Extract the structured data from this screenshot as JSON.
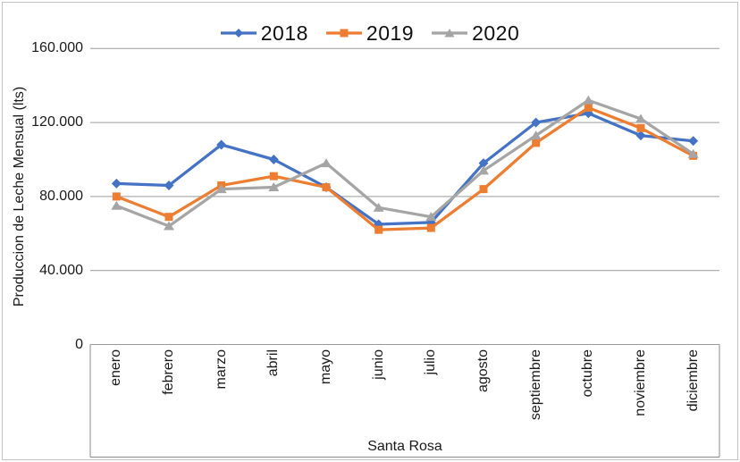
{
  "chart_data": {
    "type": "line",
    "title": "",
    "xlabel": "",
    "ylabel": "Produccion de Leche Mensual (lts)",
    "group_label": "Santa Rosa",
    "ylim": [
      0,
      160000
    ],
    "ytick_interval": 40000,
    "ytick_labels": [
      "0",
      "40.000",
      "80.000",
      "120.000",
      "160.000"
    ],
    "grid": true,
    "legend_position": "top-center",
    "categories": [
      "enero",
      "febrero",
      "marzo",
      "abril",
      "mayo",
      "junio",
      "julio",
      "agosto",
      "septiembre",
      "octubre",
      "noviembre",
      "diciembre"
    ],
    "series": [
      {
        "name": "2018",
        "color": "#4472C4",
        "marker": "diamond",
        "values": [
          87000,
          86000,
          108000,
          100000,
          85000,
          65000,
          66000,
          98000,
          120000,
          125000,
          113000,
          110000
        ]
      },
      {
        "name": "2019",
        "color": "#ED7D31",
        "marker": "square",
        "values": [
          80000,
          69000,
          86000,
          91000,
          85000,
          62000,
          63000,
          84000,
          109000,
          128000,
          117000,
          102000
        ]
      },
      {
        "name": "2020",
        "color": "#A5A5A5",
        "marker": "triangle",
        "values": [
          75000,
          64000,
          84000,
          85000,
          98000,
          74000,
          69000,
          94000,
          113000,
          132000,
          122000,
          103000
        ]
      }
    ]
  },
  "colors": {
    "gridline": "#9a9a9a",
    "axis_box": "#8a8a8a",
    "text": "#1a1a1a",
    "chart_border": "#c3c3c3",
    "background": "#ffffff"
  }
}
